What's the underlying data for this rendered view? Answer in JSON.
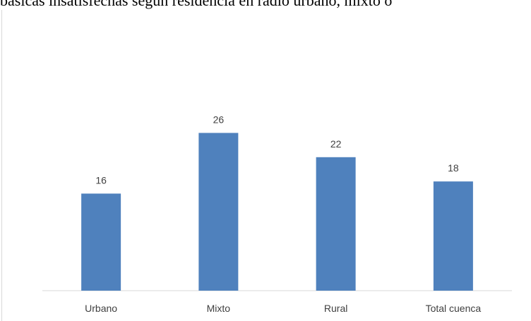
{
  "header": {
    "caption_fragment": "básicas insatisfechas según residencia en radio urbano, mixto o"
  },
  "colors": {
    "bar": "#4f81bd",
    "axis": "#d9d9d9",
    "text": "#404040"
  },
  "chart_data": {
    "type": "bar",
    "categories": [
      "Urbano",
      "Mixto",
      "Rural",
      "Total cuenca"
    ],
    "values": [
      16,
      26,
      22,
      18
    ],
    "title": "",
    "xlabel": "",
    "ylabel": "",
    "ylim": [
      0,
      45
    ],
    "grid": false,
    "legend": "none",
    "data_labels": true
  }
}
